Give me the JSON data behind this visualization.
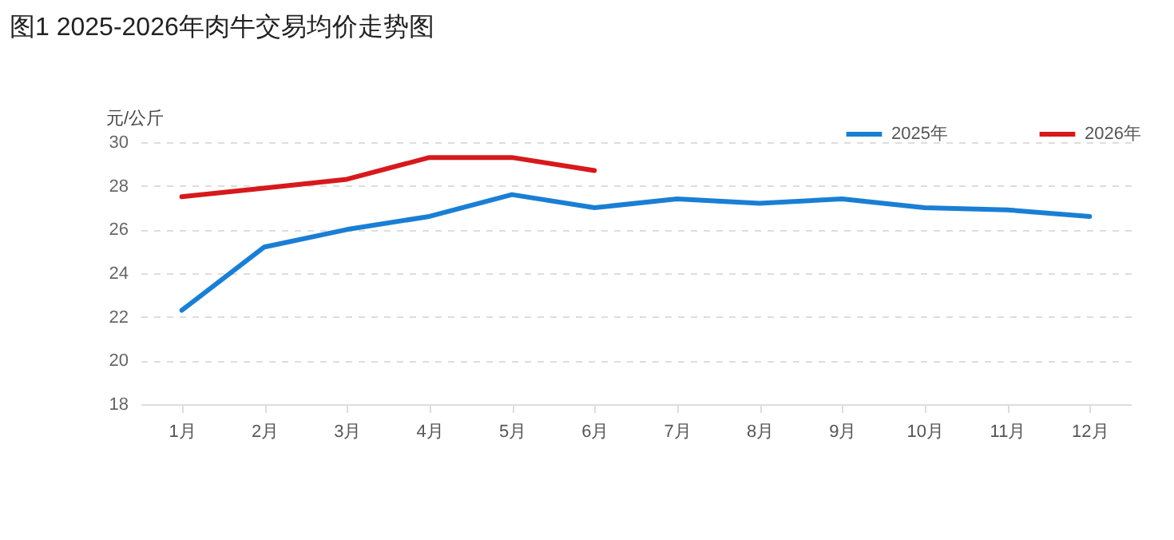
{
  "chart_data": {
    "type": "line",
    "title": "图1 2025-2026年肉牛交易均价走势图",
    "ylabel": "元/公斤",
    "categories": [
      "1月",
      "2月",
      "3月",
      "4月",
      "5月",
      "6月",
      "7月",
      "8月",
      "9月",
      "10月",
      "11月",
      "12月"
    ],
    "series": [
      {
        "name": "2025年",
        "color": "#1a7fd4",
        "values": [
          22.3,
          25.2,
          26.0,
          26.6,
          27.6,
          27.0,
          27.4,
          27.2,
          27.4,
          27.0,
          26.9,
          26.6
        ]
      },
      {
        "name": "2026年",
        "color": "#d7191c",
        "values": [
          27.5,
          27.9,
          28.3,
          29.3,
          29.3,
          28.7,
          null,
          null,
          null,
          null,
          null,
          null
        ]
      }
    ],
    "ylim": [
      18,
      30
    ],
    "yticks": [
      18,
      20,
      22,
      24,
      26,
      28,
      30
    ],
    "grid": "y",
    "legend": "top right",
    "marker": "none",
    "line_style": "solid"
  }
}
